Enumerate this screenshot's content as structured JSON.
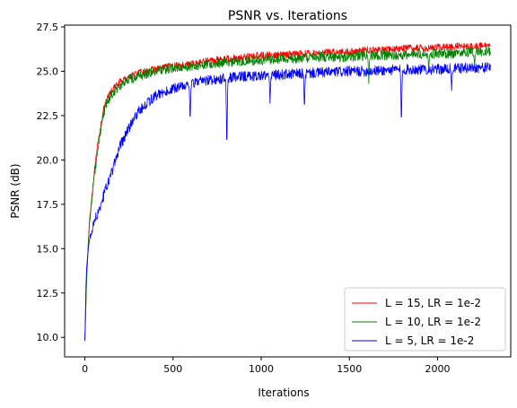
{
  "chart_data": {
    "type": "line",
    "title": "PSNR vs. Iterations",
    "xlabel": "Iterations",
    "ylabel": "PSNR (dB)",
    "xlim": [
      -115,
      2415
    ],
    "ylim": [
      8.9,
      27.6
    ],
    "xticks": [
      0,
      500,
      1000,
      1500,
      2000
    ],
    "xtick_labels": [
      "0",
      "500",
      "1000",
      "1500",
      "2000"
    ],
    "yticks": [
      10.0,
      12.5,
      15.0,
      17.5,
      20.0,
      22.5,
      25.0,
      27.5
    ],
    "ytick_labels": [
      "10.0",
      "12.5",
      "15.0",
      "17.5",
      "20.0",
      "22.5",
      "25.0",
      "27.5"
    ],
    "grid": false,
    "legend_position": "lower-right",
    "series": [
      {
        "name": "L = 15, LR = 1e-2",
        "color": "#ff0000",
        "x": [
          0,
          10,
          25,
          50,
          75,
          100,
          125,
          150,
          200,
          250,
          300,
          400,
          500,
          600,
          700,
          800,
          900,
          1000,
          1100,
          1200,
          1300,
          1400,
          1500,
          1600,
          1700,
          1800,
          1900,
          2000,
          2100,
          2200,
          2300
        ],
        "y": [
          9.8,
          13.5,
          16.5,
          19.0,
          21.0,
          22.6,
          23.4,
          23.9,
          24.4,
          24.7,
          24.9,
          25.1,
          25.3,
          25.4,
          25.6,
          25.7,
          25.8,
          25.9,
          25.9,
          26.0,
          26.0,
          26.1,
          26.1,
          26.2,
          26.2,
          26.3,
          26.3,
          26.35,
          26.4,
          26.4,
          26.45
        ],
        "noise": 0.2,
        "dips": []
      },
      {
        "name": "L = 10, LR = 1e-2",
        "color": "#008000",
        "x": [
          0,
          10,
          25,
          50,
          75,
          100,
          125,
          150,
          200,
          250,
          300,
          400,
          500,
          600,
          700,
          800,
          900,
          1000,
          1100,
          1200,
          1300,
          1400,
          1500,
          1600,
          1700,
          1800,
          1900,
          2000,
          2100,
          2200,
          2300
        ],
        "y": [
          9.8,
          13.3,
          16.3,
          18.8,
          20.8,
          22.3,
          23.2,
          23.7,
          24.2,
          24.5,
          24.7,
          25.0,
          25.2,
          25.3,
          25.4,
          25.5,
          25.6,
          25.6,
          25.7,
          25.7,
          25.8,
          25.8,
          25.8,
          25.9,
          25.9,
          25.9,
          26.0,
          26.0,
          26.0,
          26.1,
          26.1
        ],
        "noise": 0.28,
        "dips": [
          {
            "x": 1610,
            "y": 24.3
          },
          {
            "x": 1950,
            "y": 25.0
          },
          {
            "x": 2210,
            "y": 25.2
          }
        ]
      },
      {
        "name": "L = 5, LR = 1e-2",
        "color": "#0000ff",
        "x": [
          0,
          5,
          10,
          25,
          50,
          75,
          100,
          125,
          150,
          175,
          200,
          250,
          300,
          350,
          400,
          450,
          500,
          550,
          600,
          700,
          800,
          900,
          1000,
          1100,
          1200,
          1300,
          1400,
          1500,
          1600,
          1700,
          1800,
          1900,
          2000,
          2100,
          2200,
          2300
        ],
        "y": [
          9.8,
          12.5,
          14.0,
          15.5,
          16.4,
          17.1,
          17.8,
          18.5,
          19.2,
          20.0,
          20.8,
          21.8,
          22.7,
          23.2,
          23.6,
          23.8,
          24.0,
          24.2,
          24.3,
          24.5,
          24.6,
          24.7,
          24.75,
          24.8,
          24.85,
          24.9,
          24.95,
          25.0,
          25.0,
          25.05,
          25.1,
          25.1,
          25.1,
          25.15,
          25.2,
          25.2
        ],
        "noise": 0.3,
        "dips": [
          {
            "x": 597,
            "y": 21.9
          },
          {
            "x": 805,
            "y": 20.1
          },
          {
            "x": 1050,
            "y": 23.2
          },
          {
            "x": 1245,
            "y": 22.6
          },
          {
            "x": 1795,
            "y": 21.6
          },
          {
            "x": 2080,
            "y": 23.9
          }
        ]
      }
    ]
  }
}
